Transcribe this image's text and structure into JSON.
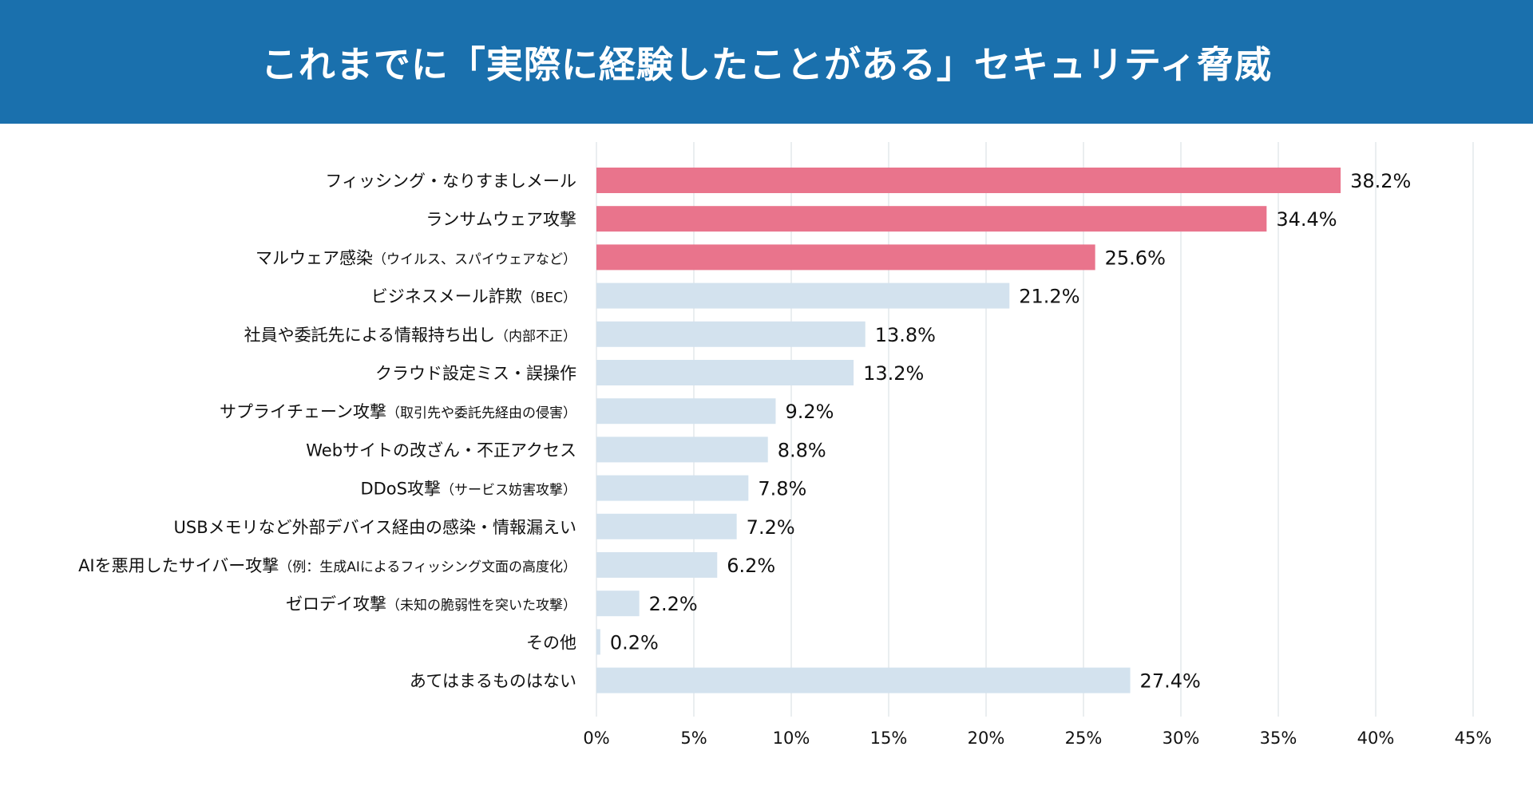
{
  "colors": {
    "header_bg": "#1a70ad",
    "highlight_bar": "#e9748c",
    "normal_bar": "#d3e2ee",
    "grid": "#e3e8ec"
  },
  "chart_data": {
    "type": "bar",
    "orientation": "horizontal",
    "title": "これまでに「実際に経験したことがある」セキュリティ脅威",
    "xlim": [
      0,
      45
    ],
    "xticks": [
      "0%",
      "5%",
      "10%",
      "15%",
      "20%",
      "25%",
      "30%",
      "35%",
      "40%",
      "45%"
    ],
    "categories": [
      {
        "main": "フィッシング・なりすましメール",
        "sub": ""
      },
      {
        "main": "ランサムウェア攻撃",
        "sub": ""
      },
      {
        "main": "マルウェア感染",
        "sub": "（ウイルス、スパイウェアなど）"
      },
      {
        "main": "ビジネスメール詐欺",
        "sub": "（BEC）"
      },
      {
        "main": "社員や委託先による情報持ち出し",
        "sub": "（内部不正）"
      },
      {
        "main": "クラウド設定ミス・誤操作",
        "sub": ""
      },
      {
        "main": "サプライチェーン攻撃",
        "sub": "（取引先や委託先経由の侵害）"
      },
      {
        "main": "Webサイトの改ざん・不正アクセス",
        "sub": ""
      },
      {
        "main": "DDoS攻撃",
        "sub": "（サービス妨害攻撃）"
      },
      {
        "main": "USBメモリなど外部デバイス経由の感染・情報漏えい",
        "sub": ""
      },
      {
        "main": "AIを悪用したサイバー攻撃",
        "sub": "（例：生成AIによるフィッシング文面の高度化）"
      },
      {
        "main": "ゼロデイ攻撃",
        "sub": "（未知の脆弱性を突いた攻撃）"
      },
      {
        "main": "その他",
        "sub": ""
      },
      {
        "main": "あてはまるものはない",
        "sub": ""
      }
    ],
    "values": [
      38.2,
      34.4,
      25.6,
      21.2,
      13.8,
      13.2,
      9.2,
      8.8,
      7.8,
      7.2,
      6.2,
      2.2,
      0.2,
      27.4
    ],
    "value_labels": [
      "38.2%",
      "34.4%",
      "25.6%",
      "21.2%",
      "13.8%",
      "13.2%",
      "9.2%",
      "8.8%",
      "7.8%",
      "7.2%",
      "6.2%",
      "2.2%",
      "0.2%",
      "27.4%"
    ],
    "highlighted": [
      true,
      true,
      true,
      false,
      false,
      false,
      false,
      false,
      false,
      false,
      false,
      false,
      false,
      false
    ]
  }
}
